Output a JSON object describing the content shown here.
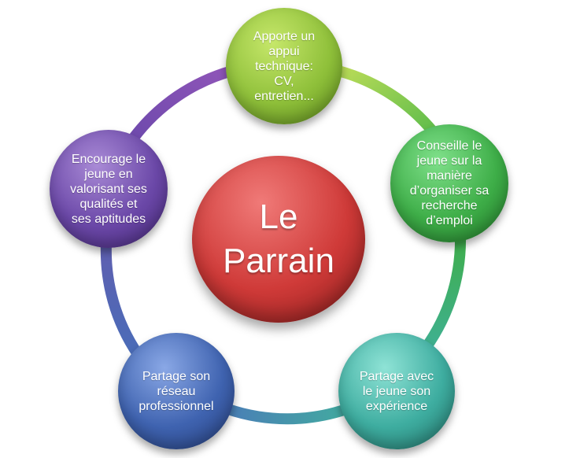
{
  "center": {
    "label": "Le\nParrain",
    "color": "#cf3a38"
  },
  "nodes": [
    {
      "id": "top",
      "label": "Apporte un\nappui\ntechnique:\nCV,\nentretien...",
      "color": "#8fc03a"
    },
    {
      "id": "right",
      "label": "Conseille le\njeune sur la\nmanière\nd’organiser sa\nrecherche\nd’emploi",
      "color": "#3eae48"
    },
    {
      "id": "bottom-right",
      "label": "Partage avec\nle jeune son\nexpérience",
      "color": "#3eada0"
    },
    {
      "id": "bottom-left",
      "label": "Partage son\nréseau\nprofessionnel",
      "color": "#3f63b0"
    },
    {
      "id": "left",
      "label": "Encourage le\njeune en\nvalorisant ses\nqualités et\nses aptitudes",
      "color": "#6b48a8"
    }
  ],
  "ring_colors": {
    "top_to_right": "#a8cf45",
    "right_to_bottom_right": "#3fae4a",
    "bottom_to_bottom": "#45a8a8",
    "bottom_left_to_left": "#4f72b8",
    "left_to_top": "#7a4fb0"
  }
}
